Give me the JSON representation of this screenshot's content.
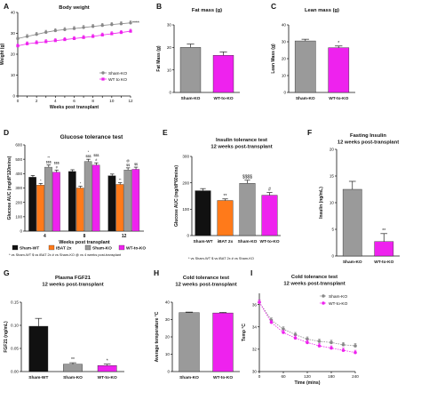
{
  "chart_data": [
    {
      "panel": "A",
      "type": "line",
      "title": "Body weight",
      "xlabel": "Weeks post transplant",
      "ylabel": "Weight (g)",
      "xlim": [
        0,
        12
      ],
      "ylim": [
        0,
        40
      ],
      "xticks": [
        0,
        1,
        2,
        3,
        4,
        5,
        6,
        7,
        8,
        9,
        10,
        11,
        12
      ],
      "xtick_labels": [
        "0",
        "",
        "2",
        "",
        "4",
        "",
        "6",
        "",
        "8",
        "",
        "10",
        "",
        "12"
      ],
      "yticks": [
        0,
        10,
        20,
        30,
        40
      ],
      "ytick_labels": [
        "0",
        "10",
        "20",
        "30",
        "40"
      ],
      "series": [
        {
          "name": "Sham-KO",
          "color": "#888888",
          "marker": "circle",
          "x": [
            0,
            1,
            2,
            3,
            4,
            5,
            6,
            7,
            8,
            9,
            10,
            11,
            12
          ],
          "y": [
            27.5,
            28.5,
            29.5,
            30.5,
            31.3,
            31.8,
            32.3,
            32.8,
            33.3,
            33.8,
            34.2,
            34.6,
            35.0
          ]
        },
        {
          "name": "WT to KO",
          "color": "#ee22ee",
          "marker": "square",
          "x": [
            0,
            1,
            2,
            3,
            4,
            5,
            6,
            7,
            8,
            9,
            10,
            11,
            12
          ],
          "y": [
            24.0,
            25.0,
            25.5,
            26.0,
            26.5,
            27.0,
            27.5,
            28.0,
            28.5,
            29.2,
            29.8,
            30.4,
            31.0
          ]
        }
      ],
      "annotations": [
        "****"
      ],
      "legend": "bottom-right"
    },
    {
      "panel": "B",
      "type": "bar",
      "title": "Fat mass (g)",
      "ylabel": "Fat Mass (g)",
      "ylim": [
        0,
        30
      ],
      "yticks": [
        0,
        10,
        20,
        30
      ],
      "ytick_labels": [
        "0",
        "10",
        "20",
        "30"
      ],
      "categories": [
        "Sham-KO",
        "WT-to-KO"
      ],
      "values": [
        20.0,
        16.5
      ],
      "errors": [
        1.5,
        1.5
      ],
      "colors": [
        "#9a9a9a",
        "#ee22ee"
      ],
      "annotations": [
        "",
        ""
      ]
    },
    {
      "panel": "C",
      "type": "bar",
      "title": "Lean mass (g)",
      "ylabel": "Lean Mass (g)",
      "ylim": [
        0,
        40
      ],
      "yticks": [
        0,
        10,
        20,
        30,
        40
      ],
      "ytick_labels": [
        "0",
        "10",
        "20",
        "30",
        "40"
      ],
      "categories": [
        "Sham-KO",
        "WT-to-KO"
      ],
      "values": [
        30.5,
        26.5
      ],
      "errors": [
        1.0,
        1.0
      ],
      "colors": [
        "#9a9a9a",
        "#ee22ee"
      ],
      "annotations": [
        "",
        "*"
      ]
    },
    {
      "panel": "D",
      "type": "bar",
      "title": "Glucose tolerance test",
      "xlabel": "Weeks post transplant",
      "ylabel": "Glucose AUC (mg/dl*120mins)",
      "ylim": [
        0,
        600
      ],
      "yticks": [
        0,
        100,
        200,
        300,
        400,
        500,
        600
      ],
      "ytick_labels": [
        "0",
        "100",
        "200",
        "300",
        "400",
        "500",
        "600"
      ],
      "categories": [
        "4",
        "8",
        "12"
      ],
      "series": [
        {
          "name": "Sham-WT",
          "color": "#111111",
          "values": [
            375,
            415,
            385
          ],
          "errors": [
            12,
            12,
            12
          ],
          "annotations": [
            "",
            "",
            ""
          ]
        },
        {
          "name": "iBAT 2x",
          "color": "#ff7a1a",
          "values": [
            320,
            300,
            325
          ],
          "errors": [
            12,
            12,
            12
          ],
          "annotations": [
            "*",
            "*",
            "**"
          ]
        },
        {
          "name": "Sham-KO",
          "color": "#9a9a9a",
          "values": [
            445,
            485,
            425
          ],
          "errors": [
            15,
            15,
            15
          ],
          "annotations": [
            "**\n$$$",
            "*\n$$$",
            "@\n$$"
          ]
        },
        {
          "name": "WT-to-KO",
          "color": "#ee22ee",
          "values": [
            410,
            460,
            430
          ],
          "errors": [
            15,
            15,
            15
          ],
          "annotations": [
            "$$$\n#",
            "$$$\n#",
            "$$"
          ]
        }
      ],
      "footnote": "* vs Sham-WT  $ vs iBAT 2x  # vs Sham-KO  @ vs 4 weeks post-transplant",
      "legend": "bottom"
    },
    {
      "panel": "E",
      "type": "bar",
      "title": "Insulin tolerance test\n12 weeks post-transplant",
      "ylabel": "Glucose AUC (mg/dl*60mins)",
      "ylim": [
        0,
        300
      ],
      "yticks": [
        0,
        100,
        200,
        300
      ],
      "ytick_labels": [
        "0",
        "100",
        "200",
        "300"
      ],
      "categories": [
        "Sham-WT",
        "iBAT 2x",
        "Sham-KO",
        "WT-to-KO"
      ],
      "values": [
        170,
        133,
        198,
        153
      ],
      "errors": [
        8,
        6,
        12,
        10
      ],
      "colors": [
        "#111111",
        "#ff7a1a",
        "#9a9a9a",
        "#ee22ee"
      ],
      "annotations": [
        "",
        "**",
        "$$$$",
        "#"
      ],
      "footnote": "* vs Sham-WT  $ vs iBAT 2x  # vs Sham-KO"
    },
    {
      "panel": "F",
      "type": "bar",
      "title": "Fasting Insulin\n12 weeks post-transplant",
      "ylabel": "Insulin (ng/mL)",
      "ylim": [
        0,
        20
      ],
      "yticks": [
        0,
        5,
        10,
        15,
        20
      ],
      "ytick_labels": [
        "0",
        "5",
        "10",
        "15",
        "20"
      ],
      "categories": [
        "Sham-KO",
        "WT-to-KO"
      ],
      "values": [
        12.5,
        2.7
      ],
      "errors": [
        1.5,
        1.5
      ],
      "colors": [
        "#9a9a9a",
        "#ee22ee"
      ],
      "annotations": [
        "",
        "**"
      ]
    },
    {
      "panel": "G",
      "type": "bar",
      "title": "Plasma FGF21\n12 weeks post-transplant",
      "ylabel": "FGF21 (ng/mL)",
      "ylim": [
        0,
        0.15
      ],
      "yticks": [
        0,
        0.05,
        0.1,
        0.15
      ],
      "ytick_labels": [
        "0.00",
        "0.05",
        "0.10",
        "0.15"
      ],
      "categories": [
        "Sham-WT",
        "Sham-KO",
        "WT-to-KO"
      ],
      "values": [
        0.098,
        0.016,
        0.013
      ],
      "errors": [
        0.017,
        0.003,
        0.003
      ],
      "colors": [
        "#111111",
        "#9a9a9a",
        "#ee22ee"
      ],
      "annotations": [
        "",
        "**",
        "*"
      ]
    },
    {
      "panel": "H",
      "type": "bar",
      "title": "Cold tolerance test\n12 weeks post-transplant",
      "ylabel": "Average temperature °C",
      "ylim": [
        0,
        40
      ],
      "yticks": [
        0,
        10,
        20,
        30,
        40
      ],
      "ytick_labels": [
        "0",
        "10",
        "20",
        "30",
        "40"
      ],
      "categories": [
        "Sham-KO",
        "WT-to-KO"
      ],
      "values": [
        34.0,
        33.8
      ],
      "errors": [
        0.3,
        0.3
      ],
      "colors": [
        "#9a9a9a",
        "#ee22ee"
      ],
      "annotations": [
        "",
        ""
      ]
    },
    {
      "panel": "I",
      "type": "line",
      "title": "Cold tolerance test\n12 weeks post-transplant",
      "xlabel": "Time (mins)",
      "ylabel": "Temp °C",
      "xlim": [
        0,
        240
      ],
      "ylim": [
        30,
        37
      ],
      "xticks": [
        0,
        60,
        120,
        180,
        240
      ],
      "xtick_labels": [
        "0",
        "60",
        "120",
        "180",
        "240"
      ],
      "yticks": [
        30,
        32,
        34,
        36
      ],
      "ytick_labels": [
        "30",
        "32",
        "34",
        "36"
      ],
      "series": [
        {
          "name": "Sham-KO",
          "color": "#888888",
          "marker": "circle",
          "x": [
            0,
            30,
            60,
            90,
            120,
            150,
            180,
            210,
            240
          ],
          "y": [
            36.2,
            34.6,
            33.8,
            33.3,
            32.9,
            32.7,
            32.6,
            32.4,
            32.3
          ]
        },
        {
          "name": "WT-to-KO",
          "color": "#ee22ee",
          "marker": "circle",
          "x": [
            0,
            30,
            60,
            90,
            120,
            150,
            180,
            210,
            240
          ],
          "y": [
            36.2,
            34.4,
            33.5,
            33.0,
            32.6,
            32.3,
            32.1,
            31.9,
            31.7
          ]
        }
      ],
      "legend": "top-right"
    }
  ]
}
